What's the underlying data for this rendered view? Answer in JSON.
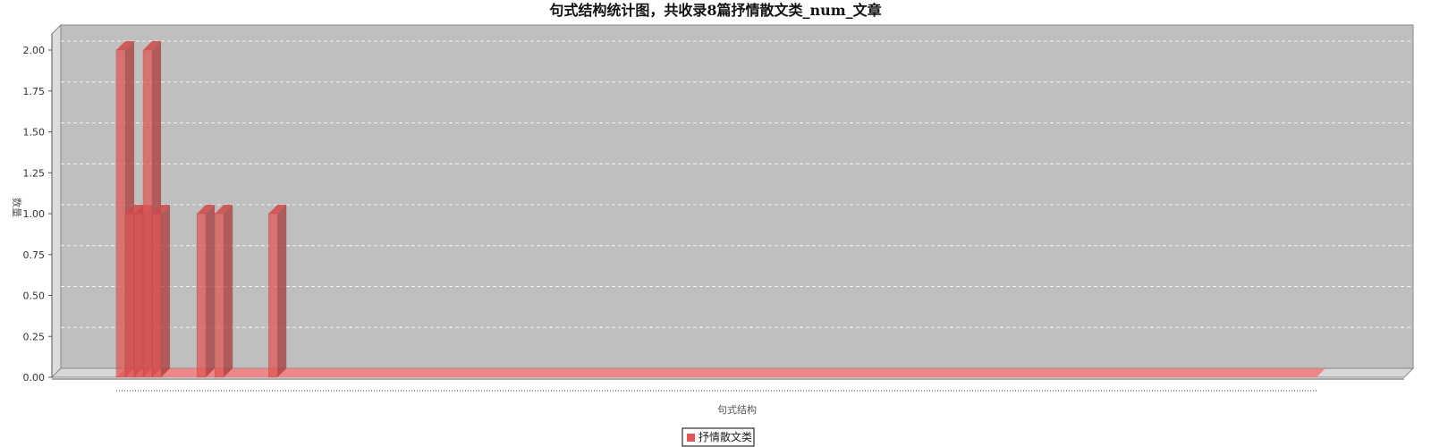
{
  "chart_data": {
    "type": "bar",
    "title": "句式结构统计图，共收录8篇抒情散文类_num_文章",
    "xlabel": "句式结构",
    "ylabel": "数量",
    "ylim": [
      0,
      2.1
    ],
    "y_ticks": [
      "0.00",
      "0.25",
      "0.50",
      "0.75",
      "1.00",
      "1.25",
      "1.50",
      "1.75",
      "2.00"
    ],
    "grid": true,
    "legend_position": "bottom-center",
    "category_count": 134,
    "series": [
      {
        "name": "抒情散文类",
        "color": "#e05555",
        "bars": [
          {
            "index": 0,
            "value": 2
          },
          {
            "index": 1,
            "value": 1
          },
          {
            "index": 2,
            "value": 1
          },
          {
            "index": 3,
            "value": 2
          },
          {
            "index": 4,
            "value": 1
          },
          {
            "index": 9,
            "value": 1
          },
          {
            "index": 11,
            "value": 1
          },
          {
            "index": 17,
            "value": 1
          }
        ]
      }
    ]
  }
}
